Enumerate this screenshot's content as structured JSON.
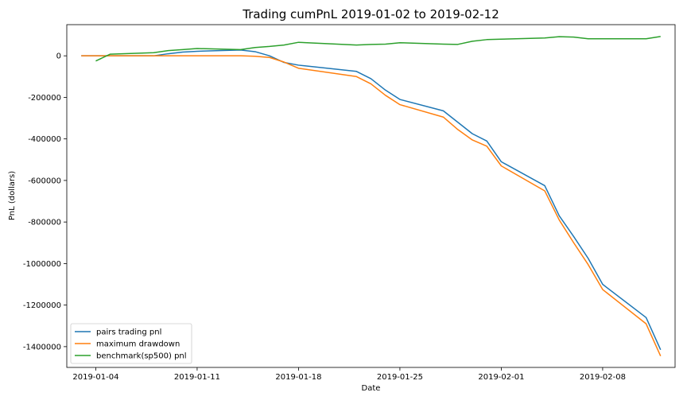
{
  "chart_data": {
    "type": "line",
    "title": "Trading cumPnL 2019-01-02 to 2019-02-12",
    "xlabel": "Date",
    "ylabel": "PnL (dollars)",
    "xlim": [
      "2019-01-02",
      "2019-02-13"
    ],
    "ylim": [
      -1500000,
      150000
    ],
    "x_ticks": [
      "2019-01-04",
      "2019-01-11",
      "2019-01-18",
      "2019-01-25",
      "2019-02-01",
      "2019-02-08"
    ],
    "y_ticks": [
      0,
      -200000,
      -400000,
      -600000,
      -800000,
      -1000000,
      -1200000,
      -1400000
    ],
    "grid": false,
    "legend_position": "lower-left",
    "colors": {
      "pairs trading pnl": "#1f77b4",
      "maximum drawdown": "#ff7f0e",
      "benchmark(sp500) pnl": "#2ca02c"
    },
    "series": [
      {
        "name": "pairs trading pnl",
        "x": [
          "2019-01-03",
          "2019-01-04",
          "2019-01-07",
          "2019-01-08",
          "2019-01-09",
          "2019-01-10",
          "2019-01-11",
          "2019-01-14",
          "2019-01-15",
          "2019-01-16",
          "2019-01-17",
          "2019-01-18",
          "2019-01-22",
          "2019-01-23",
          "2019-01-24",
          "2019-01-25",
          "2019-01-28",
          "2019-01-29",
          "2019-01-30",
          "2019-01-31",
          "2019-02-01",
          "2019-02-04",
          "2019-02-05",
          "2019-02-06",
          "2019-02-07",
          "2019-02-08",
          "2019-02-11",
          "2019-02-12"
        ],
        "values": [
          0,
          0,
          0,
          0,
          10000,
          18000,
          22000,
          28000,
          20000,
          0,
          -32000,
          -45000,
          -75000,
          -110000,
          -165000,
          -210000,
          -265000,
          -320000,
          -375000,
          -410000,
          -510000,
          -625000,
          -770000,
          -870000,
          -975000,
          -1100000,
          -1260000,
          -1415000
        ]
      },
      {
        "name": "maximum drawdown",
        "x": [
          "2019-01-03",
          "2019-01-04",
          "2019-01-07",
          "2019-01-08",
          "2019-01-09",
          "2019-01-10",
          "2019-01-11",
          "2019-01-14",
          "2019-01-15",
          "2019-01-16",
          "2019-01-17",
          "2019-01-18",
          "2019-01-22",
          "2019-01-23",
          "2019-01-24",
          "2019-01-25",
          "2019-01-28",
          "2019-01-29",
          "2019-01-30",
          "2019-01-31",
          "2019-02-01",
          "2019-02-04",
          "2019-02-05",
          "2019-02-06",
          "2019-02-07",
          "2019-02-08",
          "2019-02-11",
          "2019-02-12"
        ],
        "values": [
          0,
          0,
          0,
          0,
          0,
          0,
          0,
          0,
          -2000,
          -8000,
          -30000,
          -60000,
          -100000,
          -135000,
          -190000,
          -235000,
          -295000,
          -355000,
          -405000,
          -435000,
          -530000,
          -650000,
          -790000,
          -900000,
          -1005000,
          -1125000,
          -1290000,
          -1445000
        ]
      },
      {
        "name": "benchmark(sp500) pnl",
        "x": [
          "2019-01-04",
          "2019-01-05",
          "2019-01-08",
          "2019-01-09",
          "2019-01-10",
          "2019-01-11",
          "2019-01-14",
          "2019-01-15",
          "2019-01-16",
          "2019-01-17",
          "2019-01-18",
          "2019-01-22",
          "2019-01-23",
          "2019-01-24",
          "2019-01-25",
          "2019-01-28",
          "2019-01-29",
          "2019-01-30",
          "2019-01-31",
          "2019-02-01",
          "2019-02-04",
          "2019-02-05",
          "2019-02-06",
          "2019-02-07",
          "2019-02-08",
          "2019-02-11",
          "2019-02-12"
        ],
        "values": [
          -25000,
          8000,
          15000,
          25000,
          30000,
          35000,
          30000,
          40000,
          45000,
          52000,
          65000,
          52000,
          55000,
          56000,
          63000,
          56000,
          55000,
          70000,
          78000,
          80000,
          86000,
          92000,
          90000,
          82000,
          82000,
          82000,
          93000
        ]
      }
    ]
  }
}
